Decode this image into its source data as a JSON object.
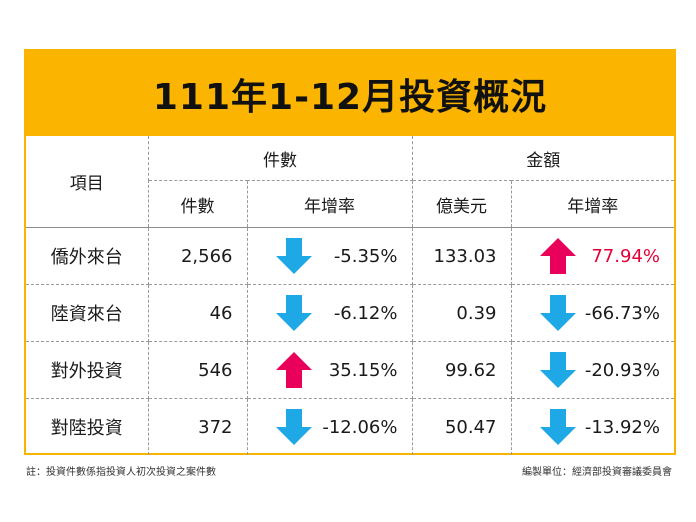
{
  "title": "111年1-12月投資概況",
  "headers": {
    "item": "項目",
    "count_group": "件數",
    "amount_group": "金額",
    "count": "件數",
    "count_growth": "年增率",
    "amount": "億美元",
    "amount_growth": "年增率"
  },
  "colors": {
    "banner": "#fbb500",
    "arrow_up": "#e8005a",
    "arrow_down": "#1ea8e6",
    "rate_up_text": "#e5003a"
  },
  "rows": [
    {
      "label": "僑外來台",
      "count": "2,566",
      "count_growth": "-5.35%",
      "count_dir": "down",
      "amount": "133.03",
      "amount_growth": "77.94%",
      "amount_dir": "up"
    },
    {
      "label": "陸資來台",
      "count": "46",
      "count_growth": "-6.12%",
      "count_dir": "down",
      "amount": "0.39",
      "amount_growth": "-66.73%",
      "amount_dir": "down"
    },
    {
      "label": "對外投資",
      "count": "546",
      "count_growth": "35.15%",
      "count_dir": "up",
      "amount": "99.62",
      "amount_growth": "-20.93%",
      "amount_dir": "down"
    },
    {
      "label": "對陸投資",
      "count": "372",
      "count_growth": "-12.06%",
      "count_dir": "down",
      "amount": "50.47",
      "amount_growth": "-13.92%",
      "amount_dir": "down"
    }
  ],
  "footnote": "註：投資件數係指投資人初次投資之案件數",
  "compiled_by": "編製單位：經濟部投資審議委員會"
}
